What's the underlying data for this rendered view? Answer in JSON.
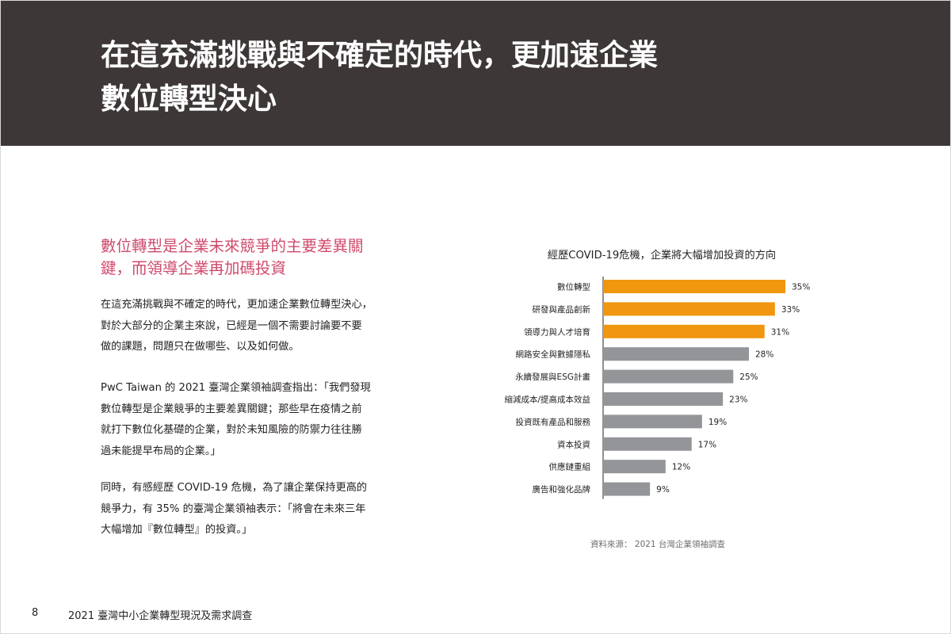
{
  "header": {
    "title_line1": "在這充滿挑戰與不確定的時代，更加速企業",
    "title_line2": "數位轉型決心",
    "background": "#3d3837"
  },
  "section": {
    "heading_line1": "數位轉型是企業未來競爭的主要差異關",
    "heading_line2": "鍵，而領導企業再加碼投資",
    "heading_color": "#d04a6c"
  },
  "paragraphs": [
    {
      "lines": [
        "在這充滿挑戰與不確定的時代，更加速企業數位轉型決心，",
        "對於大部分的企業主來說，已經是一個不需要討論要不要",
        "做的課題，問題只在做哪些、以及如何做。"
      ]
    },
    {
      "lines": [
        "PwC Taiwan 的 2021 臺灣企業領袖調查指出：「我們發現",
        "數位轉型是企業競爭的主要差異關鍵；那些早在疫情之前",
        "就打下數位化基礎的企業，對於未知風險的防禦力往往勝",
        "過未能提早布局的企業。」"
      ]
    },
    {
      "lines": [
        "同時，有感經歷 COVID-19 危機，為了讓企業保持更高的",
        "競爭力，有 35% 的臺灣企業領袖表示：「將會在未來三年",
        "大幅增加『數位轉型』的投資。」"
      ]
    }
  ],
  "chart_data": {
    "type": "bar",
    "orientation": "horizontal",
    "title": "經歷COVID-19危機，企業將大幅增加投資的方向",
    "categories": [
      "數位轉型",
      "研發與產品創新",
      "領導力與人才培育",
      "網路安全與數據隱私",
      "永續發展與ESG計畫",
      "縮減成本/提高成本效益",
      "投資既有產品和服務",
      "資本投資",
      "供應鏈重組",
      "廣告和強化品牌"
    ],
    "values": [
      35,
      33,
      31,
      28,
      25,
      23,
      19,
      17,
      12,
      9
    ],
    "value_labels": [
      "35%",
      "33%",
      "31%",
      "28%",
      "25%",
      "23%",
      "19%",
      "17%",
      "12%",
      "9%"
    ],
    "unit": "%",
    "xlim": [
      0,
      40
    ],
    "highlight_top_n": 3,
    "highlight_color": "#f0960f",
    "bar_color": "#939598",
    "grid": false,
    "source": "資料來源： 2021 台灣企業領袖調查"
  },
  "footer": {
    "page_number": "8",
    "text": "2021 臺灣中小企業轉型現況及需求調查"
  }
}
